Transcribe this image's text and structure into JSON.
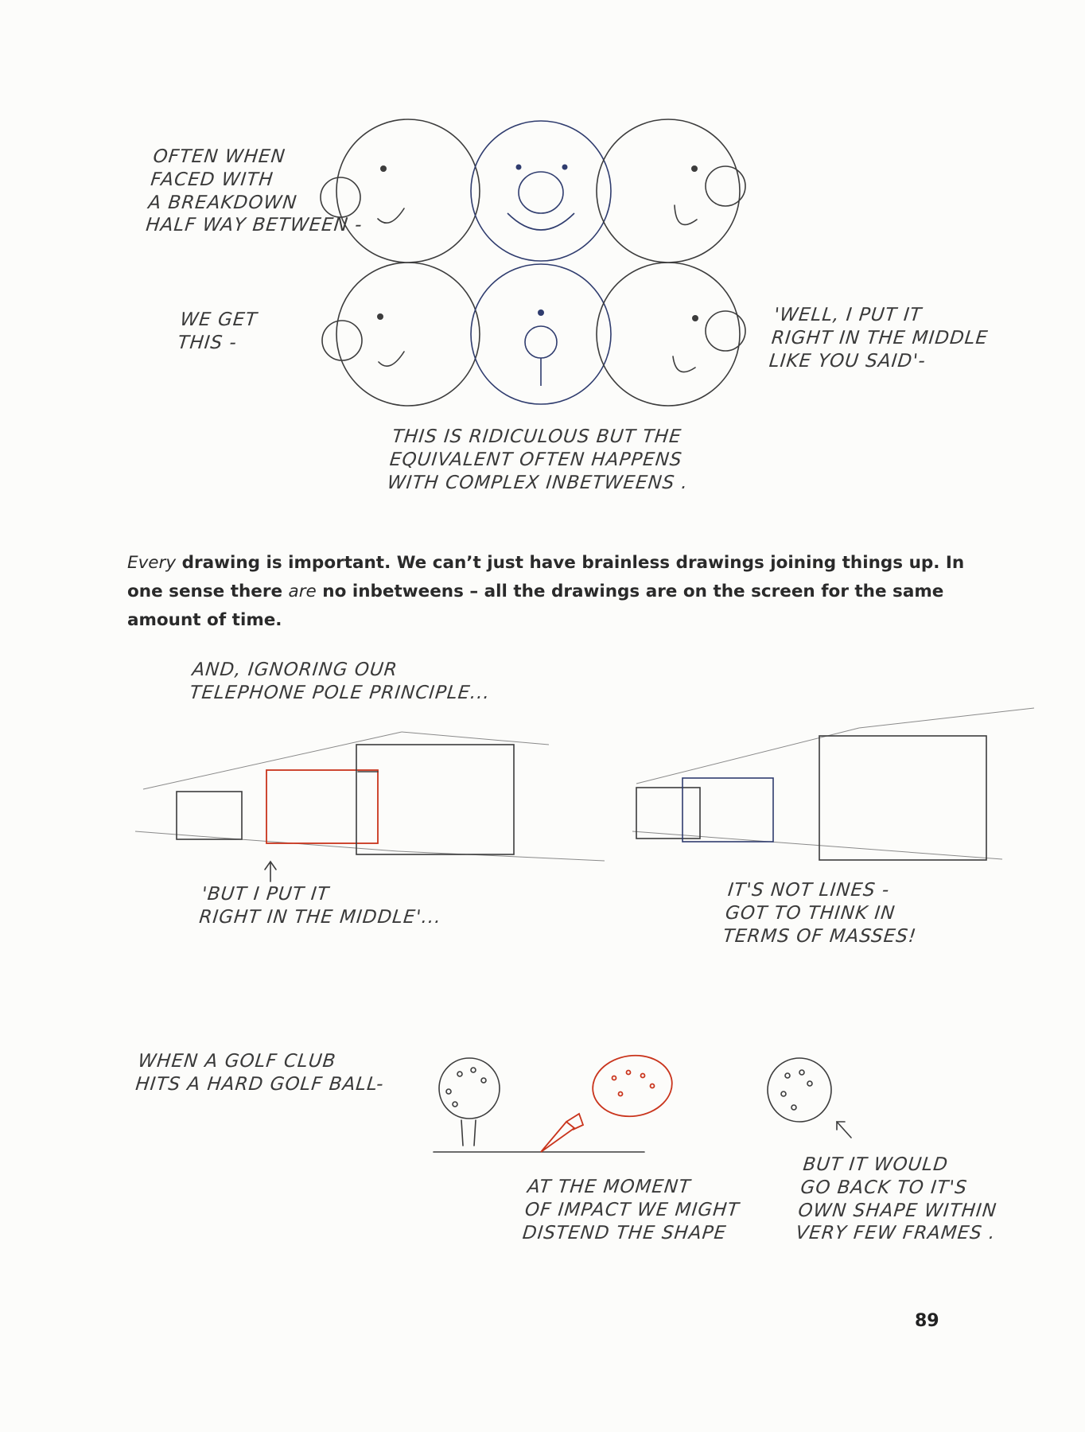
{
  "captions": {
    "breakdown": [
      "OFTEN WHEN",
      "FACED WITH",
      "A BREAKDOWN",
      "HALF WAY BETWEEN -"
    ],
    "we_get": [
      "WE GET",
      "THIS -"
    ],
    "well_middle": [
      "'WELL, I PUT IT",
      "RIGHT IN the MIDDLE",
      "LIKE YOU SAID'-"
    ],
    "ridiculous": [
      "THIS IS RIDICULOUS BUT the",
      "EQUIVALENT OFTEN HAPPENS",
      "WITH COMPLEX INBETWEENS ."
    ],
    "ignoring": [
      "AND, IGNORING OUR",
      "TELEPHONE POLE PRINCIPLE..."
    ],
    "put_middle": [
      "'BUT I PUT IT",
      "RIGHT IN the MIDDLE'..."
    ],
    "not_lines": [
      "IT'S NOT LINES -",
      "GOT TO THINK IN",
      "TERMS OF MASSES!"
    ],
    "golf": [
      "WHEN A GOLF CLUB",
      "HITS A HARD GOLF BALL-"
    ],
    "impact": [
      "AT the MOMENT",
      "OF IMPACT WE MIGHT",
      "DISTEND the SHAPE"
    ],
    "own_shape": [
      "BUT IT WOULD",
      "GO BACK TO IT'S",
      "OWN SHAPE WITHIN",
      "VERY FEW FRAMES ."
    ]
  },
  "body": {
    "em1": "Every",
    "t1": " drawing is important. We can’t just have brainless drawings joining things up. In one sense there ",
    "em2": "are",
    "t2": " no inbetweens – all the drawings are on the screen for the same amount of time."
  },
  "page_number": "89",
  "colors": {
    "pencil": "#3c3c3c",
    "blue": "#2f3c6e",
    "red": "#c9341c"
  }
}
